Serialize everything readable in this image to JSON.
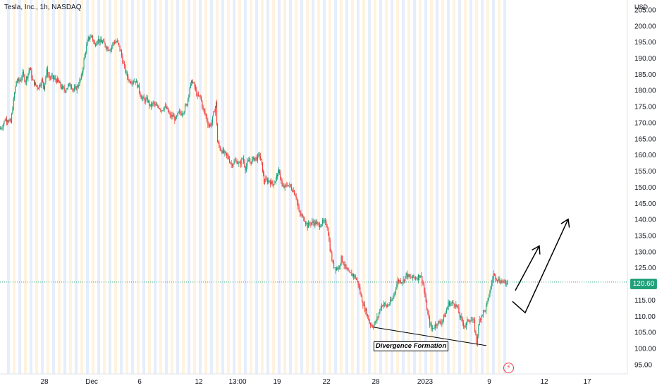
{
  "header": {
    "symbol_title": "Tesla, Inc., 1h, NASDAQ"
  },
  "axis": {
    "currency": "USD"
  },
  "price_tag": "120.60",
  "annotation": {
    "label": "Divergence Formation"
  },
  "colors": {
    "up": "#22a07a",
    "down": "#ef3b3b",
    "last_price": "#22a07a",
    "session_orange": "#fff3df",
    "session_blue": "#e6eefb",
    "drawing": "#000000",
    "alert": "#f23645"
  },
  "icons": {
    "alert": "lightning-icon"
  },
  "chart_data": {
    "type": "candlestick",
    "title": "Tesla, Inc., 1h, NASDAQ",
    "xlabel": "",
    "ylabel": "USD",
    "ylim": [
      92.5,
      208.3
    ],
    "y_ticks": [
      "205.00",
      "200.00",
      "195.00",
      "190.00",
      "185.00",
      "180.00",
      "175.00",
      "170.00",
      "165.00",
      "160.00",
      "155.00",
      "150.00",
      "145.00",
      "140.00",
      "135.00",
      "130.00",
      "125.00",
      "120.00",
      "115.00",
      "110.00",
      "105.00",
      "100.00",
      "95.00"
    ],
    "x_tick_labels": [
      "28",
      "Dec",
      "6",
      "12",
      "13:00",
      "19",
      "22",
      "28",
      "2023",
      "9",
      "12",
      "17"
    ],
    "last_price": 120.6,
    "grid": false,
    "price_path": [
      [
        0,
        168
      ],
      [
        4,
        169
      ],
      [
        8,
        171
      ],
      [
        11,
        171
      ],
      [
        16,
        170
      ],
      [
        20,
        177
      ],
      [
        24,
        183
      ],
      [
        29,
        183
      ],
      [
        33,
        185
      ],
      [
        37,
        183
      ],
      [
        43,
        187
      ],
      [
        47,
        183
      ],
      [
        50,
        182
      ],
      [
        55,
        181
      ],
      [
        60,
        183
      ],
      [
        63,
        181
      ],
      [
        67,
        186
      ],
      [
        71,
        184
      ],
      [
        75,
        184
      ],
      [
        82,
        183
      ],
      [
        88,
        181
      ],
      [
        92,
        180
      ],
      [
        96,
        181
      ],
      [
        101,
        182
      ],
      [
        105,
        180
      ],
      [
        110,
        181
      ],
      [
        116,
        184
      ],
      [
        121,
        191
      ],
      [
        126,
        196
      ],
      [
        131,
        197
      ],
      [
        135,
        194
      ],
      [
        139,
        196
      ],
      [
        143,
        195
      ],
      [
        146,
        195
      ],
      [
        150,
        194
      ],
      [
        154,
        193
      ],
      [
        158,
        193
      ],
      [
        162,
        195
      ],
      [
        167,
        195
      ],
      [
        172,
        192
      ],
      [
        176,
        188
      ],
      [
        180,
        185
      ],
      [
        184,
        183
      ],
      [
        189,
        183
      ],
      [
        193,
        183
      ],
      [
        197,
        181
      ],
      [
        201,
        178
      ],
      [
        205,
        177
      ],
      [
        210,
        177
      ],
      [
        214,
        175
      ],
      [
        218,
        176
      ],
      [
        222,
        175
      ],
      [
        226,
        175
      ],
      [
        230,
        174
      ],
      [
        234,
        175
      ],
      [
        238,
        174
      ],
      [
        242,
        172
      ],
      [
        246,
        172
      ],
      [
        250,
        171
      ],
      [
        254,
        173
      ],
      [
        258,
        173
      ],
      [
        262,
        174
      ],
      [
        266,
        176
      ],
      [
        270,
        181
      ],
      [
        273,
        183
      ],
      [
        277,
        181
      ],
      [
        281,
        178
      ],
      [
        285,
        178
      ],
      [
        289,
        174
      ],
      [
        293,
        172
      ],
      [
        297,
        169
      ],
      [
        301,
        170
      ],
      [
        305,
        174
      ],
      [
        307,
        176
      ],
      [
        309,
        164
      ],
      [
        313,
        162
      ],
      [
        317,
        161
      ],
      [
        321,
        160
      ],
      [
        325,
        159
      ],
      [
        329,
        157
      ],
      [
        333,
        158
      ],
      [
        337,
        158
      ],
      [
        341,
        157
      ],
      [
        345,
        159
      ],
      [
        349,
        156
      ],
      [
        353,
        158
      ],
      [
        357,
        158
      ],
      [
        361,
        159
      ],
      [
        365,
        159
      ],
      [
        369,
        160
      ],
      [
        372,
        157
      ],
      [
        375,
        152
      ],
      [
        379,
        152
      ],
      [
        383,
        152
      ],
      [
        387,
        151
      ],
      [
        391,
        152
      ],
      [
        394,
        154
      ],
      [
        397,
        155
      ],
      [
        401,
        150
      ],
      [
        405,
        150
      ],
      [
        409,
        151
      ],
      [
        413,
        150
      ],
      [
        417,
        149
      ],
      [
        421,
        147
      ],
      [
        425,
        142
      ],
      [
        429,
        141
      ],
      [
        433,
        140
      ],
      [
        437,
        138
      ],
      [
        441,
        139
      ],
      [
        445,
        139
      ],
      [
        449,
        139
      ],
      [
        453,
        138
      ],
      [
        457,
        139
      ],
      [
        461,
        139
      ],
      [
        465,
        138
      ],
      [
        469,
        131
      ],
      [
        473,
        126
      ],
      [
        477,
        125
      ],
      [
        481,
        125
      ],
      [
        485,
        128
      ],
      [
        489,
        126
      ],
      [
        493,
        124
      ],
      [
        497,
        123
      ],
      [
        501,
        123
      ],
      [
        505,
        122
      ],
      [
        509,
        120
      ],
      [
        513,
        116
      ],
      [
        517,
        113
      ],
      [
        521,
        111
      ],
      [
        525,
        108
      ],
      [
        529,
        107
      ],
      [
        533,
        108
      ],
      [
        537,
        110
      ],
      [
        541,
        113
      ],
      [
        545,
        114
      ],
      [
        549,
        113
      ],
      [
        553,
        114
      ],
      [
        557,
        115
      ],
      [
        561,
        118
      ],
      [
        565,
        121
      ],
      [
        569,
        121
      ],
      [
        573,
        121
      ],
      [
        577,
        123
      ],
      [
        581,
        122
      ],
      [
        585,
        122
      ],
      [
        589,
        122
      ],
      [
        593,
        122
      ],
      [
        597,
        123
      ],
      [
        601,
        120
      ],
      [
        605,
        114
      ],
      [
        609,
        109
      ],
      [
        613,
        106
      ],
      [
        617,
        107
      ],
      [
        621,
        108
      ],
      [
        625,
        108
      ],
      [
        629,
        109
      ],
      [
        633,
        111
      ],
      [
        637,
        114
      ],
      [
        641,
        114
      ],
      [
        645,
        114
      ],
      [
        649,
        113
      ],
      [
        653,
        110
      ],
      [
        657,
        108
      ],
      [
        661,
        107
      ],
      [
        665,
        109
      ],
      [
        669,
        109
      ],
      [
        673,
        108
      ],
      [
        677,
        102
      ],
      [
        681,
        109
      ],
      [
        685,
        111
      ],
      [
        689,
        112
      ],
      [
        693,
        115
      ],
      [
        697,
        119
      ],
      [
        701,
        123
      ],
      [
        705,
        122
      ],
      [
        709,
        121
      ],
      [
        713,
        121
      ],
      [
        717,
        120
      ],
      [
        721,
        121
      ]
    ],
    "annotations": {
      "divergence_line": {
        "from": [
          530,
          106.6
        ],
        "to": [
          690,
          100.9
        ]
      },
      "projection_arrow_short": {
        "from": [
          731,
          118.0
        ],
        "to": [
          765,
          131.8
        ]
      },
      "projection_path": {
        "points": [
          [
            727,
            114.6
          ],
          [
            745,
            111.1
          ],
          [
            806,
            140.1
          ]
        ]
      }
    }
  }
}
